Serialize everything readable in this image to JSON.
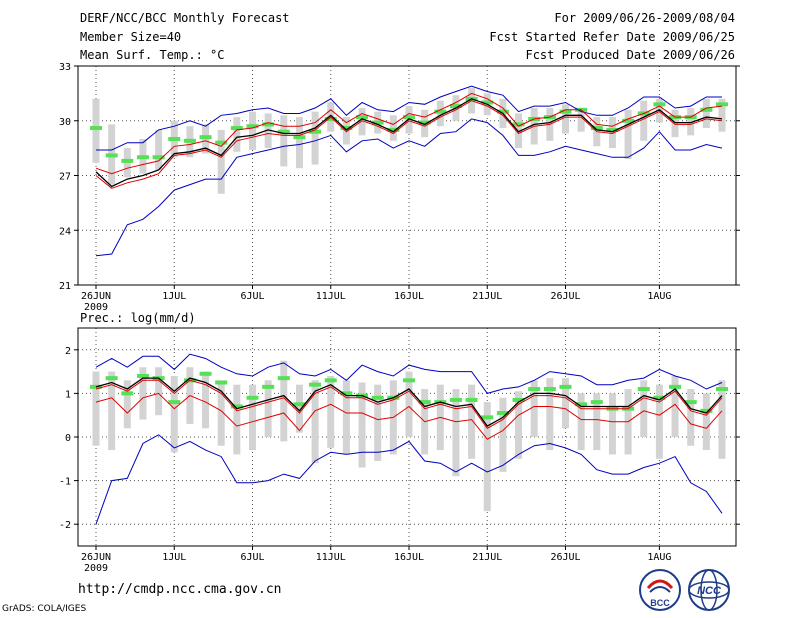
{
  "header": {
    "title": "DERF/NCC/BCC Monthly Forecast",
    "member_size": "Member Size=40",
    "variable_top": "Mean Surf. Temp.: °C",
    "forecast_period": "For 2009/06/26-2009/08/04",
    "started_refer": "Fcst Started Refer Date 2009/06/25",
    "produced": "Fcst Produced Date 2009/06/26"
  },
  "footer": {
    "url": "http://cmdp.ncc.cma.gov.cn",
    "credit": "GrADS: COLA/IGES",
    "logo_bcc": "BCC",
    "logo_ncc": "NCC"
  },
  "colors": {
    "mean_line": "#000000",
    "median_line": "#e00000",
    "envelope_line": "#0000c0",
    "member_box": "#d3d3d3",
    "member_mark": "#55e055"
  },
  "chart_data": [
    {
      "type": "line",
      "title": "Mean Surf. Temp.: °C",
      "x_ticks": [
        {
          "day": 0,
          "label": "26JUN",
          "sublabel": "2009"
        },
        {
          "day": 5,
          "label": "1JUL"
        },
        {
          "day": 10,
          "label": "6JUL"
        },
        {
          "day": 15,
          "label": "11JUL"
        },
        {
          "day": 20,
          "label": "16JUL"
        },
        {
          "day": 25,
          "label": "21JUL"
        },
        {
          "day": 30,
          "label": "26JUL"
        },
        {
          "day": 36,
          "label": "1AUG"
        }
      ],
      "xlim": [
        0,
        40
      ],
      "ylim": [
        21,
        33
      ],
      "yticks": [
        21,
        24,
        27,
        30,
        33
      ],
      "grid": true,
      "series": [
        {
          "name": "max",
          "values": [
            28.4,
            28.4,
            28.8,
            28.8,
            29.5,
            29.7,
            30.0,
            29.7,
            30.3,
            30.4,
            30.6,
            30.7,
            30.4,
            30.4,
            30.7,
            31.2,
            30.3,
            31.0,
            30.6,
            30.5,
            31.0,
            30.9,
            31.3,
            31.6,
            31.9,
            31.6,
            31.4,
            30.5,
            30.8,
            30.8,
            31.0,
            30.5,
            30.3,
            30.3,
            30.7,
            31.3,
            31.3,
            30.7,
            30.8,
            31.3,
            31.3
          ]
        },
        {
          "name": "min",
          "values": [
            22.6,
            22.7,
            24.3,
            24.6,
            25.3,
            26.2,
            26.5,
            26.8,
            26.8,
            28.0,
            28.2,
            28.4,
            28.6,
            28.7,
            28.9,
            29.2,
            28.3,
            28.9,
            29.0,
            28.5,
            28.9,
            28.6,
            29.3,
            29.4,
            30.1,
            29.9,
            29.2,
            28.1,
            28.1,
            28.3,
            28.6,
            28.4,
            28.2,
            28.0,
            28.0,
            28.5,
            29.4,
            28.4,
            28.4,
            28.7,
            28.5
          ]
        },
        {
          "name": "ensemble mean",
          "values": [
            27.2,
            26.4,
            26.8,
            27.0,
            27.3,
            28.2,
            28.3,
            28.5,
            28.1,
            29.1,
            29.2,
            29.5,
            29.3,
            29.3,
            29.6,
            30.3,
            29.5,
            30.1,
            29.8,
            29.4,
            30.1,
            29.8,
            30.3,
            30.7,
            31.2,
            30.9,
            30.4,
            29.4,
            29.8,
            29.9,
            30.3,
            30.3,
            29.5,
            29.4,
            29.8,
            30.2,
            30.6,
            29.9,
            29.9,
            30.2,
            30.1
          ]
        },
        {
          "name": "ensemble median",
          "values": [
            27.0,
            26.3,
            26.6,
            26.8,
            27.1,
            28.1,
            28.2,
            28.4,
            28.0,
            28.9,
            29.1,
            29.3,
            29.2,
            29.2,
            29.5,
            30.2,
            29.4,
            30.0,
            29.7,
            29.3,
            30.0,
            29.7,
            30.2,
            30.6,
            31.1,
            30.8,
            30.3,
            29.3,
            29.7,
            29.8,
            30.2,
            30.2,
            29.4,
            29.3,
            29.7,
            30.1,
            30.5,
            29.8,
            29.8,
            30.1,
            30.0
          ]
        },
        {
          "name": "upper",
          "values": [
            27.4,
            27.1,
            27.4,
            27.6,
            27.8,
            28.6,
            28.7,
            28.9,
            28.6,
            29.5,
            29.6,
            29.9,
            29.7,
            29.7,
            29.9,
            30.6,
            29.9,
            30.4,
            30.1,
            29.8,
            30.4,
            30.2,
            30.6,
            31.0,
            31.5,
            31.2,
            30.7,
            29.7,
            30.1,
            30.2,
            30.6,
            30.6,
            29.8,
            29.7,
            30.1,
            30.4,
            30.8,
            30.2,
            30.2,
            30.7,
            30.8
          ]
        },
        {
          "name": "members_high",
          "values": [
            31.2,
            29.8,
            28.5,
            29.0,
            29.5,
            30.0,
            29.7,
            29.8,
            29.5,
            30.2,
            30.5,
            30.4,
            30.3,
            30.2,
            30.5,
            31.0,
            30.2,
            30.7,
            30.5,
            30.3,
            30.8,
            30.6,
            31.1,
            31.4,
            31.8,
            31.5,
            31.2,
            30.4,
            30.7,
            30.7,
            30.9,
            30.5,
            30.2,
            30.2,
            30.6,
            31.1,
            31.2,
            30.6,
            30.7,
            31.2,
            31.2
          ]
        },
        {
          "name": "members_low",
          "values": [
            27.7,
            26.5,
            26.9,
            27.1,
            27.3,
            28.0,
            28.0,
            28.2,
            26.0,
            28.3,
            28.4,
            28.5,
            27.5,
            27.4,
            27.6,
            29.4,
            28.7,
            29.2,
            29.3,
            28.9,
            29.3,
            29.1,
            29.7,
            30.0,
            30.4,
            30.3,
            29.6,
            28.5,
            28.7,
            28.9,
            29.3,
            29.4,
            28.6,
            28.5,
            27.9,
            28.9,
            29.9,
            29.1,
            29.2,
            29.6,
            29.4
          ]
        },
        {
          "name": "members_mark",
          "values": [
            29.6,
            28.1,
            27.8,
            28.0,
            28.0,
            29.0,
            28.9,
            29.1,
            28.8,
            29.6,
            29.7,
            29.8,
            29.4,
            29.1,
            29.4,
            30.1,
            29.6,
            30.2,
            29.9,
            29.5,
            30.2,
            29.9,
            30.5,
            30.8,
            31.2,
            31.0,
            30.5,
            29.8,
            30.1,
            30.2,
            30.5,
            30.6,
            29.6,
            29.5,
            30.0,
            30.4,
            30.9,
            30.2,
            30.2,
            30.6,
            30.9
          ]
        }
      ]
    },
    {
      "type": "line",
      "title": "Prec.: log(mm/d)",
      "x_ticks": [
        {
          "day": 0,
          "label": "26JUN",
          "sublabel": "2009"
        },
        {
          "day": 5,
          "label": "1JUL"
        },
        {
          "day": 10,
          "label": "6JUL"
        },
        {
          "day": 15,
          "label": "11JUL"
        },
        {
          "day": 20,
          "label": "16JUL"
        },
        {
          "day": 25,
          "label": "21JUL"
        },
        {
          "day": 30,
          "label": "26JUL"
        },
        {
          "day": 36,
          "label": "1AUG"
        }
      ],
      "xlim": [
        0,
        40
      ],
      "ylim": [
        -2.5,
        2.5
      ],
      "yticks": [
        -2,
        -1,
        0,
        1,
        2
      ],
      "grid": true,
      "series": [
        {
          "name": "max",
          "values": [
            1.6,
            1.8,
            1.6,
            1.85,
            1.85,
            1.55,
            1.9,
            1.8,
            1.6,
            1.45,
            1.4,
            1.6,
            1.7,
            1.45,
            1.4,
            1.55,
            1.3,
            1.65,
            1.5,
            1.4,
            1.65,
            1.55,
            1.5,
            1.5,
            1.5,
            1.0,
            1.1,
            1.15,
            1.3,
            1.5,
            1.45,
            1.4,
            1.2,
            1.2,
            1.3,
            1.35,
            1.55,
            1.4,
            1.3,
            1.1,
            1.25
          ]
        },
        {
          "name": "min",
          "values": [
            -2.0,
            -1.0,
            -0.95,
            -0.15,
            0.05,
            -0.25,
            -0.1,
            -0.3,
            -0.45,
            -1.05,
            -1.05,
            -1.0,
            -0.85,
            -0.95,
            -0.55,
            -0.35,
            -0.4,
            -0.35,
            -0.35,
            -0.3,
            -0.1,
            -0.55,
            -0.6,
            -0.8,
            -0.6,
            -0.8,
            -0.65,
            -0.4,
            -0.2,
            -0.15,
            -0.25,
            -0.4,
            -0.75,
            -0.85,
            -0.85,
            -0.7,
            -0.6,
            -0.45,
            -1.05,
            -1.25,
            -1.75
          ]
        },
        {
          "name": "ensemble mean",
          "values": [
            1.15,
            1.25,
            1.1,
            1.35,
            1.35,
            1.05,
            1.35,
            1.25,
            1.05,
            0.65,
            0.75,
            0.85,
            0.95,
            0.6,
            1.05,
            1.2,
            0.95,
            0.95,
            0.8,
            0.9,
            1.1,
            0.7,
            0.8,
            0.7,
            0.75,
            0.25,
            0.45,
            0.8,
            1.0,
            1.0,
            0.95,
            0.7,
            0.7,
            0.7,
            0.7,
            0.95,
            0.85,
            1.1,
            0.65,
            0.55,
            0.95
          ]
        },
        {
          "name": "ensemble median",
          "values": [
            1.1,
            1.2,
            1.05,
            1.3,
            1.3,
            1.0,
            1.3,
            1.2,
            1.0,
            0.6,
            0.7,
            0.8,
            0.9,
            0.55,
            1.0,
            1.15,
            0.9,
            0.9,
            0.75,
            0.85,
            1.05,
            0.65,
            0.75,
            0.65,
            0.7,
            0.2,
            0.4,
            0.75,
            0.95,
            0.95,
            0.9,
            0.65,
            0.65,
            0.65,
            0.65,
            0.9,
            0.8,
            1.05,
            0.6,
            0.5,
            0.9
          ]
        },
        {
          "name": "lower",
          "values": [
            0.8,
            0.9,
            0.55,
            0.9,
            1.0,
            0.65,
            0.95,
            0.8,
            0.6,
            0.25,
            0.35,
            0.45,
            0.55,
            0.15,
            0.6,
            0.75,
            0.55,
            0.55,
            0.4,
            0.45,
            0.7,
            0.35,
            0.45,
            0.35,
            0.4,
            -0.05,
            0.15,
            0.5,
            0.7,
            0.7,
            0.65,
            0.4,
            0.4,
            0.35,
            0.35,
            0.6,
            0.5,
            0.75,
            0.3,
            0.2,
            0.6
          ]
        },
        {
          "name": "members_high",
          "values": [
            1.5,
            1.5,
            1.3,
            1.6,
            1.6,
            1.4,
            1.6,
            1.5,
            1.3,
            1.2,
            1.2,
            1.3,
            1.75,
            1.2,
            1.3,
            1.4,
            1.3,
            1.25,
            1.2,
            1.3,
            1.5,
            1.1,
            1.2,
            1.1,
            1.2,
            0.8,
            0.9,
            1.05,
            1.3,
            1.35,
            1.35,
            1.0,
            1.0,
            1.0,
            1.1,
            1.3,
            1.2,
            1.4,
            1.1,
            1.0,
            1.3
          ]
        },
        {
          "name": "members_low",
          "values": [
            -0.2,
            -0.3,
            0.2,
            0.4,
            0.5,
            -0.35,
            0.3,
            0.2,
            -0.2,
            -0.4,
            -0.3,
            0.0,
            -0.1,
            0.1,
            -0.6,
            -0.25,
            -0.4,
            -0.7,
            -0.55,
            -0.4,
            0.0,
            -0.4,
            -0.3,
            -0.9,
            -0.5,
            -1.7,
            -0.8,
            -0.5,
            0.0,
            -0.3,
            0.2,
            -0.3,
            -0.3,
            -0.4,
            -0.4,
            0.0,
            -0.5,
            0.0,
            -0.2,
            -0.3,
            -0.5
          ]
        },
        {
          "name": "members_mark",
          "values": [
            1.15,
            1.35,
            1.0,
            1.4,
            1.35,
            0.8,
            1.3,
            1.45,
            1.25,
            0.7,
            0.9,
            1.15,
            1.35,
            0.75,
            1.2,
            1.3,
            1.0,
            0.95,
            0.9,
            0.9,
            1.3,
            0.8,
            0.8,
            0.85,
            0.85,
            0.45,
            0.55,
            0.85,
            1.1,
            1.1,
            1.15,
            0.75,
            0.8,
            0.65,
            0.65,
            1.1,
            0.9,
            1.15,
            0.8,
            0.6,
            1.1
          ]
        }
      ]
    }
  ]
}
